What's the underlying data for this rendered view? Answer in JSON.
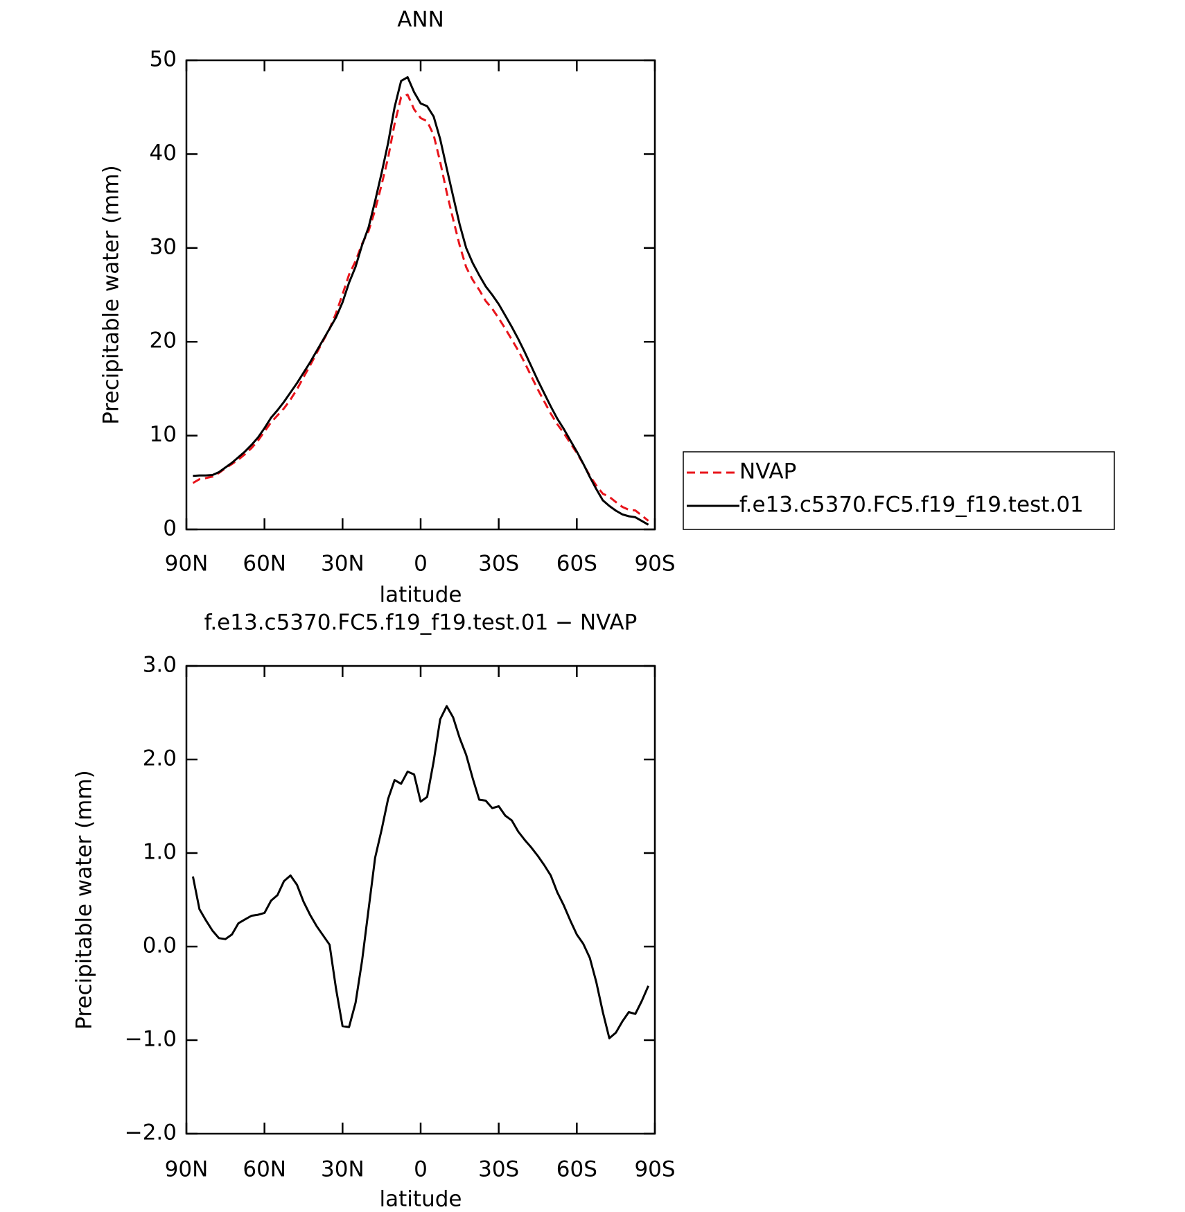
{
  "chart_data": [
    {
      "type": "line",
      "title": "ANN",
      "x_label": "latitude",
      "y_label": "Precipitable water (mm)",
      "x": [
        87.5,
        85,
        82.5,
        80,
        77.5,
        75,
        72.5,
        70,
        67.5,
        65,
        62.5,
        60,
        57.5,
        55,
        52.5,
        50,
        47.5,
        45,
        42.5,
        40,
        37.5,
        35,
        32.5,
        30,
        27.5,
        25,
        22.5,
        20,
        17.5,
        15,
        12.5,
        10,
        7.5,
        5,
        2.5,
        0,
        -2.5,
        -5,
        -7.5,
        -10,
        -12.5,
        -15,
        -17.5,
        -20,
        -22.5,
        -25,
        -27.5,
        -30,
        -32.5,
        -35,
        -37.5,
        -40,
        -42.5,
        -45,
        -47.5,
        -50,
        -52.5,
        -55,
        -57.5,
        -60,
        -62.5,
        -65,
        -67.5,
        -70,
        -72.5,
        -75,
        -77.5,
        -80,
        -82.5,
        -85,
        -87.5
      ],
      "xlim": [
        90,
        -90
      ],
      "xticks": [
        {
          "value": 90,
          "label": "90N"
        },
        {
          "value": 60,
          "label": "60N"
        },
        {
          "value": 30,
          "label": "30N"
        },
        0,
        {
          "value": -30,
          "label": "30S"
        },
        {
          "value": -60,
          "label": "60S"
        },
        {
          "value": -90,
          "label": "90S"
        }
      ],
      "ylim": [
        0,
        50
      ],
      "yticks": [
        0,
        10,
        20,
        30,
        40,
        50
      ],
      "legend": "right",
      "series": [
        {
          "name": "NVAP",
          "color": "#e8141b",
          "style": "dashed",
          "values": [
            4.95,
            5.35,
            5.47,
            5.63,
            6.01,
            6.52,
            6.97,
            7.45,
            8.01,
            8.67,
            9.46,
            10.44,
            11.41,
            12.15,
            12.9,
            13.84,
            14.94,
            16.22,
            17.46,
            18.78,
            20.08,
            21.38,
            23.05,
            25.05,
            27.16,
            28.6,
            30.45,
            31.8,
            34.05,
            36.75,
            39.62,
            43.22,
            46.06,
            46.33,
            44.76,
            43.85,
            43.5,
            42.02,
            39.17,
            35.93,
            33.05,
            30.27,
            27.95,
            26.6,
            25.53,
            24.34,
            23.52,
            22.5,
            21.4,
            20.25,
            19.07,
            17.76,
            16.34,
            14.93,
            13.63,
            12.34,
            11.22,
            10.26,
            9.22,
            8.17,
            6.97,
            5.72,
            4.68,
            3.8,
            3.48,
            2.92,
            2.4,
            2.1,
            2.02,
            1.48,
            0.92
          ]
        },
        {
          "name": "f.e13.c5370.FC5.f19_f19.test.01",
          "color": "#000000",
          "style": "solid",
          "values": [
            5.7,
            5.75,
            5.75,
            5.8,
            6.1,
            6.6,
            7.1,
            7.7,
            8.3,
            9.0,
            9.8,
            10.8,
            11.9,
            12.7,
            13.6,
            14.6,
            15.6,
            16.7,
            17.8,
            19.0,
            20.2,
            21.4,
            22.6,
            24.2,
            26.3,
            28.0,
            30.3,
            32.2,
            35.0,
            38.0,
            41.2,
            45.0,
            47.8,
            48.2,
            46.6,
            45.4,
            45.1,
            44.0,
            41.6,
            38.5,
            35.5,
            32.5,
            30.0,
            28.4,
            27.1,
            25.9,
            25.0,
            24.0,
            22.8,
            21.6,
            20.3,
            18.9,
            17.4,
            15.9,
            14.5,
            13.1,
            11.8,
            10.7,
            9.5,
            8.3,
            7.0,
            5.6,
            4.3,
            3.1,
            2.5,
            2.0,
            1.6,
            1.4,
            1.3,
            0.9,
            0.5
          ]
        }
      ]
    },
    {
      "type": "line",
      "title": "f.e13.c5370.FC5.f19_f19.test.01 − NVAP",
      "x_label": "latitude",
      "y_label": "Precipitable water (mm)",
      "x": [
        87.5,
        85,
        82.5,
        80,
        77.5,
        75,
        72.5,
        70,
        67.5,
        65,
        62.5,
        60,
        57.5,
        55,
        52.5,
        50,
        47.5,
        45,
        42.5,
        40,
        37.5,
        35,
        32.5,
        30,
        27.5,
        25,
        22.5,
        20,
        17.5,
        15,
        12.5,
        10,
        7.5,
        5,
        2.5,
        0,
        -2.5,
        -5,
        -7.5,
        -10,
        -12.5,
        -15,
        -17.5,
        -20,
        -22.5,
        -25,
        -27.5,
        -30,
        -32.5,
        -35,
        -37.5,
        -40,
        -42.5,
        -45,
        -47.5,
        -50,
        -52.5,
        -55,
        -57.5,
        -60,
        -62.5,
        -65,
        -67.5,
        -70,
        -72.5,
        -75,
        -77.5,
        -80,
        -82.5,
        -85,
        -87.5
      ],
      "xlim": [
        90,
        -90
      ],
      "xticks": [
        {
          "value": 90,
          "label": "90N"
        },
        {
          "value": 60,
          "label": "60N"
        },
        {
          "value": 30,
          "label": "30N"
        },
        0,
        {
          "value": -30,
          "label": "30S"
        },
        {
          "value": -60,
          "label": "60S"
        },
        {
          "value": -90,
          "label": "90S"
        }
      ],
      "ylim": [
        -2,
        3
      ],
      "yticks": [
        {
          "value": -2,
          "label": "−2.0"
        },
        {
          "value": -1,
          "label": "−1.0"
        },
        {
          "value": 0,
          "label": "0.0"
        },
        {
          "value": 1,
          "label": "1.0"
        },
        {
          "value": 2,
          "label": "2.0"
        },
        {
          "value": 3,
          "label": "3.0"
        }
      ],
      "series": [
        {
          "color": "#000000",
          "style": "solid",
          "values": [
            0.75,
            0.4,
            0.28,
            0.17,
            0.09,
            0.08,
            0.13,
            0.25,
            0.29,
            0.33,
            0.34,
            0.36,
            0.49,
            0.55,
            0.7,
            0.76,
            0.66,
            0.48,
            0.34,
            0.22,
            0.12,
            0.02,
            -0.45,
            -0.85,
            -0.86,
            -0.6,
            -0.15,
            0.4,
            0.95,
            1.25,
            1.58,
            1.78,
            1.74,
            1.87,
            1.84,
            1.55,
            1.6,
            1.98,
            2.43,
            2.57,
            2.45,
            2.23,
            2.05,
            1.8,
            1.57,
            1.56,
            1.48,
            1.5,
            1.4,
            1.35,
            1.23,
            1.14,
            1.06,
            0.97,
            0.87,
            0.76,
            0.58,
            0.44,
            0.28,
            0.13,
            0.03,
            -0.12,
            -0.38,
            -0.7,
            -0.98,
            -0.92,
            -0.8,
            -0.7,
            -0.72,
            -0.58,
            -0.42
          ]
        }
      ]
    }
  ]
}
